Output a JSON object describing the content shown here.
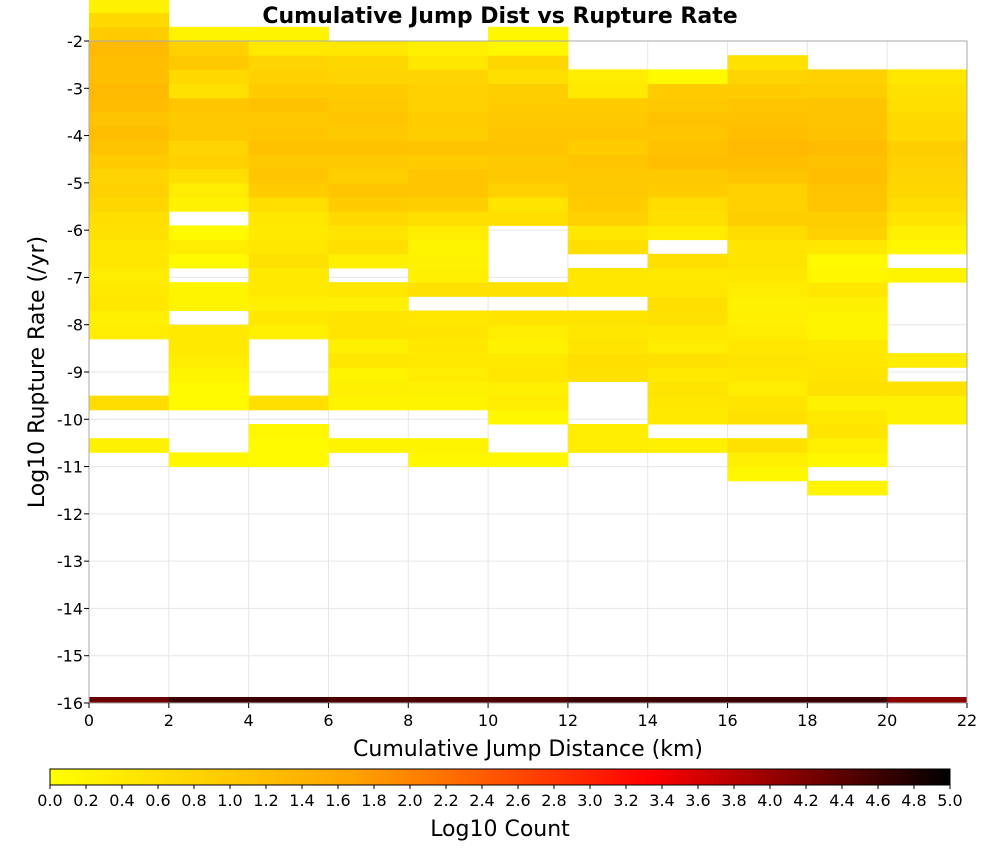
{
  "chart_data": {
    "type": "heatmap",
    "title": "Cumulative Jump Dist vs Rupture Rate",
    "xlabel": "Cumulative Jump Distance (km)",
    "ylabel": "Log10 Rupture Rate (/yr)",
    "xlim": [
      0,
      22
    ],
    "ylim": [
      -16,
      -2
    ],
    "x_ticks": [
      "0",
      "2",
      "4",
      "6",
      "8",
      "10",
      "12",
      "14",
      "16",
      "18",
      "20",
      "22"
    ],
    "y_ticks": [
      "-2",
      "-3",
      "-4",
      "-5",
      "-6",
      "-7",
      "-8",
      "-9",
      "-10",
      "-11",
      "-12",
      "-13",
      "-14",
      "-15",
      "-16"
    ],
    "x_bin_width": 2,
    "y_bin_height": 0.3,
    "grid": true,
    "colorbar": {
      "label": "Log10 Count",
      "range": [
        0,
        5
      ],
      "ticks": [
        "0.0",
        "0.2",
        "0.4",
        "0.6",
        "0.8",
        "1.0",
        "1.2",
        "1.4",
        "1.6",
        "1.8",
        "2.0",
        "2.2",
        "2.4",
        "2.6",
        "2.8",
        "3.0",
        "3.2",
        "3.4",
        "3.6",
        "3.8",
        "4.0",
        "4.2",
        "4.4",
        "4.6",
        "4.8",
        "5.0"
      ],
      "colors": [
        "#ffff00",
        "#ffa500",
        "#ff0000",
        "#000000"
      ]
    },
    "bottom_row_log10_count": [
      4.3,
      4.6,
      4.6,
      4.5,
      4.5,
      4.5,
      4.6,
      4.6,
      4.6,
      4.6,
      4.1
    ],
    "columns": [
      {
        "x": 0,
        "y_bottom": -10.7,
        "values": [
          0.25,
          0,
          0,
          0.65,
          0,
          0,
          0,
          0,
          0.35,
          0.3,
          0.45,
          0.4,
          0.35,
          0.45,
          0.45,
          0.55,
          0.6,
          0.75,
          0.85,
          0.8,
          0.95,
          1.1,
          1.2,
          1.1,
          1.25,
          1.3,
          1.2,
          1.2,
          1.3,
          0.95,
          0.7,
          0.25
        ]
      },
      {
        "x": 2,
        "y_bottom": -11.0,
        "values": [
          0.15,
          0,
          0,
          0,
          0.1,
          0.1,
          0.2,
          0.35,
          0.4,
          0.4,
          0,
          0.2,
          0.2,
          0,
          0.1,
          0.35,
          0.1,
          0,
          0.25,
          0.35,
          0.6,
          0.85,
          0.8,
          1.0,
          1.0,
          1.05,
          0.55,
          0.7,
          1.0,
          0.85,
          0.2
        ]
      },
      {
        "x": 4,
        "y_bottom": -11.0,
        "values": [
          0.1,
          0.1,
          0.15,
          0,
          0.6,
          0,
          0,
          0,
          0,
          0.3,
          0.45,
          0.3,
          0.4,
          0.4,
          0.55,
          0.45,
          0.4,
          0.45,
          0.6,
          0.95,
          1.05,
          1.0,
          1.15,
          1.05,
          1.0,
          1.15,
          0.95,
          0.85,
          0.8,
          0.4,
          0.2
        ]
      },
      {
        "x": 6,
        "y_bottom": -10.7,
        "values": [
          0.2,
          0,
          0,
          0.2,
          0.3,
          0.2,
          0.45,
          0.3,
          0.5,
          0.5,
          0.3,
          0.45,
          0,
          0.3,
          0.6,
          0.5,
          0.7,
          0.95,
          1.05,
          0.9,
          1.0,
          1.15,
          1.0,
          1.05,
          1.0,
          0.95,
          0.8,
          0.75,
          0.45
        ]
      },
      {
        "x": 8,
        "y_bottom": -11.0,
        "values": [
          0.15,
          0.2,
          0,
          0,
          0.2,
          0.25,
          0.35,
          0.4,
          0.45,
          0.5,
          0.45,
          0,
          0.55,
          0.3,
          0.25,
          0.2,
          0.35,
          0.6,
          0.9,
          1.05,
          1.05,
          0.95,
          1.1,
          0.9,
          0.95,
          0.85,
          0.85,
          0.8,
          0.45,
          0.3
        ]
      },
      {
        "x": 10,
        "y_bottom": -11.0,
        "values": [
          0.15,
          0,
          0,
          0.15,
          0.35,
          0.3,
          0.45,
          0.4,
          0.25,
          0.35,
          0.5,
          0,
          0.55,
          0,
          0,
          0,
          0,
          0.6,
          0.5,
          0.85,
          1.0,
          1.0,
          1.1,
          1.05,
          1.0,
          0.95,
          0.9,
          0.6,
          0.75,
          0.15,
          0.15
        ]
      },
      {
        "x": 12,
        "y_bottom": -10.7,
        "values": [
          0.35,
          0.35,
          0,
          0,
          0,
          0.55,
          0.6,
          0.5,
          0.45,
          0.5,
          0,
          0.45,
          0.45,
          0,
          0.6,
          0.45,
          0.85,
          0.95,
          1.0,
          1.0,
          1.05,
          0.95,
          1.05,
          1.0,
          0.95,
          0.4,
          0.35
        ]
      },
      {
        "x": 14,
        "y_bottom": -10.7,
        "values": [
          0.3,
          0,
          0.4,
          0.45,
          0.5,
          0.4,
          0.55,
          0.35,
          0.4,
          0.55,
          0.6,
          0.45,
          0.4,
          0.6,
          0,
          0.35,
          0.6,
          0.65,
          0.95,
          1.0,
          1.2,
          1.15,
          1.05,
          1.15,
          1.0,
          0.95,
          0.1
        ]
      },
      {
        "x": 16,
        "y_bottom": -11.3,
        "values": [
          0.15,
          0.3,
          0.55,
          0,
          0.55,
          0.5,
          0.35,
          0.45,
          0.5,
          0.45,
          0.35,
          0.3,
          0.25,
          0.35,
          0.45,
          0.5,
          0.5,
          0.65,
          0.9,
          0.85,
          0.85,
          1.1,
          1.2,
          1.3,
          1.2,
          1.15,
          1.05,
          0.95,
          0.8,
          0.55
        ]
      },
      {
        "x": 18,
        "y_bottom": -11.6,
        "values": [
          0.2,
          0,
          0.15,
          0.3,
          0.5,
          0.4,
          0.25,
          0.55,
          0.5,
          0.45,
          0.4,
          0.2,
          0.2,
          0.3,
          0.45,
          0.15,
          0.1,
          0.45,
          0.85,
          0.9,
          1.05,
          1.1,
          1.2,
          1.15,
          1.25,
          1.15,
          1.1,
          1.1,
          0.9,
          0.85
        ]
      },
      {
        "x": 20,
        "y_bottom": -10.1,
        "values": [
          0.25,
          0.25,
          0.55,
          0,
          0.35,
          0,
          0,
          0,
          0,
          0,
          0.2,
          0,
          0.15,
          0.3,
          0.5,
          0.65,
          0.75,
          0.8,
          0.85,
          0.9,
          0.7,
          0.7,
          0.6,
          0.55,
          0.45
        ]
      }
    ]
  }
}
